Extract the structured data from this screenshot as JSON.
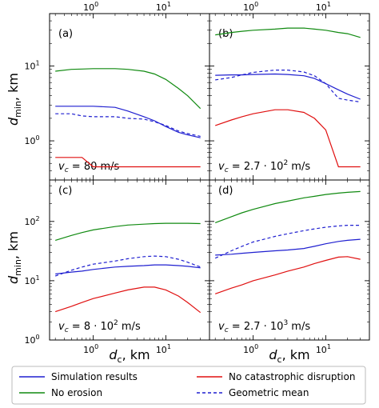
{
  "chart_data": [
    {
      "type": "line",
      "panel": "(a)",
      "annotation": "v_c = 80 m/s",
      "xscale": "log",
      "yscale": "log",
      "xlim": [
        0.25,
        40
      ],
      "ylim": [
        0.3,
        50
      ],
      "x": [
        0.3,
        0.5,
        0.7,
        1,
        2,
        3,
        5,
        7,
        10,
        15,
        20,
        30
      ],
      "series": [
        {
          "name": "Simulation results",
          "color": "#1f1fd0",
          "dash": "solid",
          "values": [
            2.9,
            2.9,
            2.9,
            2.9,
            2.8,
            2.5,
            2.1,
            1.85,
            1.55,
            1.3,
            1.2,
            1.1
          ]
        },
        {
          "name": "No erosion",
          "color": "#108a10",
          "dash": "solid",
          "values": [
            8.5,
            9.0,
            9.1,
            9.2,
            9.2,
            9.0,
            8.5,
            7.8,
            6.6,
            5.0,
            4.0,
            2.7
          ]
        },
        {
          "name": "No catastrophic disruption",
          "color": "#e01010",
          "dash": "solid",
          "values": [
            0.6,
            0.6,
            0.6,
            0.45,
            0.45,
            0.45,
            0.45,
            0.45,
            0.45,
            0.45,
            0.45,
            0.45
          ]
        },
        {
          "name": "Geometric mean",
          "color": "#1f1fd0",
          "dash": "dashed",
          "values": [
            2.3,
            2.3,
            2.15,
            2.1,
            2.1,
            2.0,
            1.95,
            1.8,
            1.6,
            1.35,
            1.25,
            1.15
          ]
        }
      ]
    },
    {
      "type": "line",
      "panel": "(b)",
      "annotation": "v_c = 2.7·10² m/s",
      "xscale": "log",
      "yscale": "log",
      "xlim": [
        0.25,
        40
      ],
      "ylim": [
        0.3,
        50
      ],
      "x": [
        0.3,
        0.5,
        0.7,
        1,
        2,
        3,
        5,
        7,
        10,
        15,
        20,
        30
      ],
      "series": [
        {
          "name": "Simulation results",
          "color": "#1f1fd0",
          "dash": "solid",
          "values": [
            7.5,
            7.6,
            7.6,
            7.7,
            7.8,
            7.7,
            7.4,
            6.8,
            5.8,
            4.8,
            4.2,
            3.6
          ]
        },
        {
          "name": "No erosion",
          "color": "#108a10",
          "dash": "solid",
          "values": [
            26,
            28,
            29,
            30,
            31,
            32,
            32,
            31,
            30,
            28,
            27,
            24
          ]
        },
        {
          "name": "No catastrophic disruption",
          "color": "#e01010",
          "dash": "solid",
          "values": [
            1.6,
            1.9,
            2.1,
            2.3,
            2.6,
            2.6,
            2.4,
            2.0,
            1.4,
            0.45,
            0.45,
            0.45
          ]
        },
        {
          "name": "Geometric mean",
          "color": "#1f1fd0",
          "dash": "dashed",
          "values": [
            6.5,
            7.0,
            7.6,
            8.2,
            8.8,
            8.8,
            8.3,
            7.4,
            5.8,
            3.7,
            3.5,
            3.3
          ]
        }
      ]
    },
    {
      "type": "line",
      "panel": "(c)",
      "annotation": "v_c = 8·10² m/s",
      "xscale": "log",
      "yscale": "log",
      "xlim": [
        0.25,
        40
      ],
      "ylim": [
        1,
        500
      ],
      "x": [
        0.3,
        0.5,
        0.7,
        1,
        2,
        3,
        5,
        7,
        10,
        15,
        20,
        30
      ],
      "series": [
        {
          "name": "Simulation results",
          "color": "#1f1fd0",
          "dash": "solid",
          "values": [
            13,
            14,
            14.5,
            15.5,
            17,
            17.5,
            18,
            18.5,
            18.5,
            18,
            17.5,
            16.5
          ]
        },
        {
          "name": "No erosion",
          "color": "#108a10",
          "dash": "solid",
          "values": [
            48,
            58,
            65,
            72,
            82,
            87,
            90,
            92,
            93,
            93,
            93,
            92
          ]
        },
        {
          "name": "No catastrophic disruption",
          "color": "#e01010",
          "dash": "solid",
          "values": [
            3.0,
            3.7,
            4.3,
            5.0,
            6.2,
            7.0,
            7.8,
            7.8,
            7.0,
            5.5,
            4.3,
            2.9
          ]
        },
        {
          "name": "Geometric mean",
          "color": "#1f1fd0",
          "dash": "dashed",
          "values": [
            12,
            15,
            17,
            19,
            21.5,
            23.5,
            25.5,
            26,
            25.5,
            23,
            20.5,
            17
          ]
        }
      ]
    },
    {
      "type": "line",
      "panel": "(d)",
      "annotation": "v_c = 2.7·10³ m/s",
      "xscale": "log",
      "yscale": "log",
      "xlim": [
        0.25,
        40
      ],
      "ylim": [
        1,
        500
      ],
      "x": [
        0.3,
        0.5,
        0.7,
        1,
        2,
        3,
        5,
        7,
        10,
        15,
        20,
        30
      ],
      "series": [
        {
          "name": "Simulation results",
          "color": "#1f1fd0",
          "dash": "solid",
          "values": [
            27,
            28,
            29,
            30,
            32,
            33,
            35,
            38,
            42,
            46,
            48,
            50
          ]
        },
        {
          "name": "No erosion",
          "color": "#108a10",
          "dash": "solid",
          "values": [
            95,
            120,
            140,
            160,
            200,
            220,
            250,
            265,
            285,
            300,
            310,
            320
          ]
        },
        {
          "name": "No catastrophic disruption",
          "color": "#e01010",
          "dash": "solid",
          "values": [
            6,
            7.5,
            8.5,
            10,
            12.5,
            14.5,
            17,
            19.5,
            22,
            25,
            25.5,
            23
          ]
        },
        {
          "name": "Geometric mean",
          "color": "#1f1fd0",
          "dash": "dashed",
          "values": [
            24,
            32,
            38,
            45,
            56,
            62,
            70,
            75,
            80,
            84,
            86,
            86
          ]
        }
      ]
    }
  ],
  "axes": {
    "xlabel_var": "d",
    "xlabel_sub": "c",
    "xlabel_unit": ", km",
    "ylabel_var": "d",
    "ylabel_sub": "min",
    "ylabel_unit": ", km",
    "x_ticks": [
      "10",
      "10"
    ],
    "x_tick_exps": [
      "0",
      "1"
    ],
    "y_ticks_top": [
      "10",
      "10"
    ],
    "y_tick_exps_top": [
      "0",
      "1"
    ],
    "y_ticks_bottom": [
      "10",
      "10",
      "10"
    ],
    "y_tick_exps_bottom": [
      "0",
      "1",
      "2"
    ]
  },
  "annotations": {
    "a": {
      "letter": "(a)",
      "var": "v",
      "sub": "c",
      "text": " = 80 m/s"
    },
    "b": {
      "letter": "(b)",
      "var": "v",
      "sub": "c",
      "text": " = 2.7 · 10",
      "sup": "2",
      "unit": " m/s"
    },
    "c": {
      "letter": "(c)",
      "var": "v",
      "sub": "c",
      "text": " = 8 · 10",
      "sup": "2",
      "unit": " m/s"
    },
    "d": {
      "letter": "(d)",
      "var": "v",
      "sub": "c",
      "text": " = 2.7 · 10",
      "sup": "3",
      "unit": " m/s"
    }
  },
  "legend": {
    "items": [
      {
        "label": "Simulation results",
        "color": "#1f1fd0",
        "dash": "solid"
      },
      {
        "label": "No catastrophic disruption",
        "color": "#e01010",
        "dash": "solid"
      },
      {
        "label": "No erosion",
        "color": "#108a10",
        "dash": "solid"
      },
      {
        "label": "Geometric mean",
        "color": "#1f1fd0",
        "dash": "dashed"
      }
    ]
  }
}
